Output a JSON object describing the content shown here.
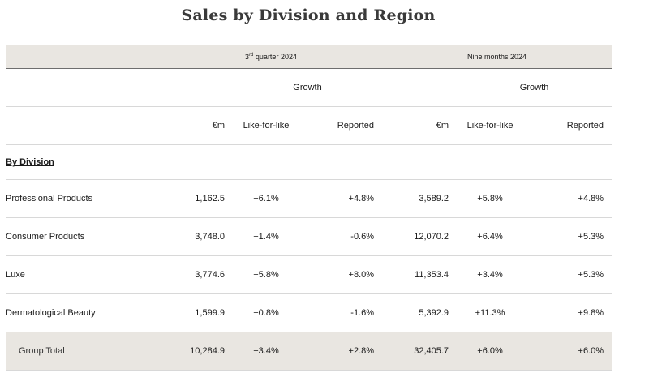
{
  "title": "Sales by Division and Region",
  "header": {
    "q3_label": "quarter 2024",
    "q3_prefix": "3",
    "q3_sup": "rd",
    "nine_label": "Nine months 2024",
    "growth": "Growth",
    "cols": [
      "€m",
      "Like-for-like",
      "Reported",
      "€m",
      "Like-for-like",
      "Reported"
    ]
  },
  "section": "By Division",
  "rows": [
    {
      "name": "Professional Products",
      "v": [
        "1,162.5",
        "+6.1%",
        "+4.8%",
        "3,589.2",
        "+5.8%",
        "+4.8%"
      ]
    },
    {
      "name": "Consumer Products",
      "v": [
        "3,748.0",
        "+1.4%",
        "-0.6%",
        "12,070.2",
        "+6.4%",
        "+5.3%"
      ]
    },
    {
      "name": "Luxe",
      "v": [
        "3,774.6",
        "+5.8%",
        "+8.0%",
        "11,353.4",
        "+3.4%",
        "+5.3%"
      ]
    },
    {
      "name": "Dermatological Beauty",
      "v": [
        "1,599.9",
        "+0.8%",
        "-1.6%",
        "5,392.9",
        "+11.3%",
        "+9.8%"
      ]
    }
  ],
  "total": {
    "name": "Group Total",
    "v": [
      "10,284.9",
      "+3.4%",
      "+2.8%",
      "32,405.7",
      "+6.0%",
      "+6.0%"
    ]
  }
}
